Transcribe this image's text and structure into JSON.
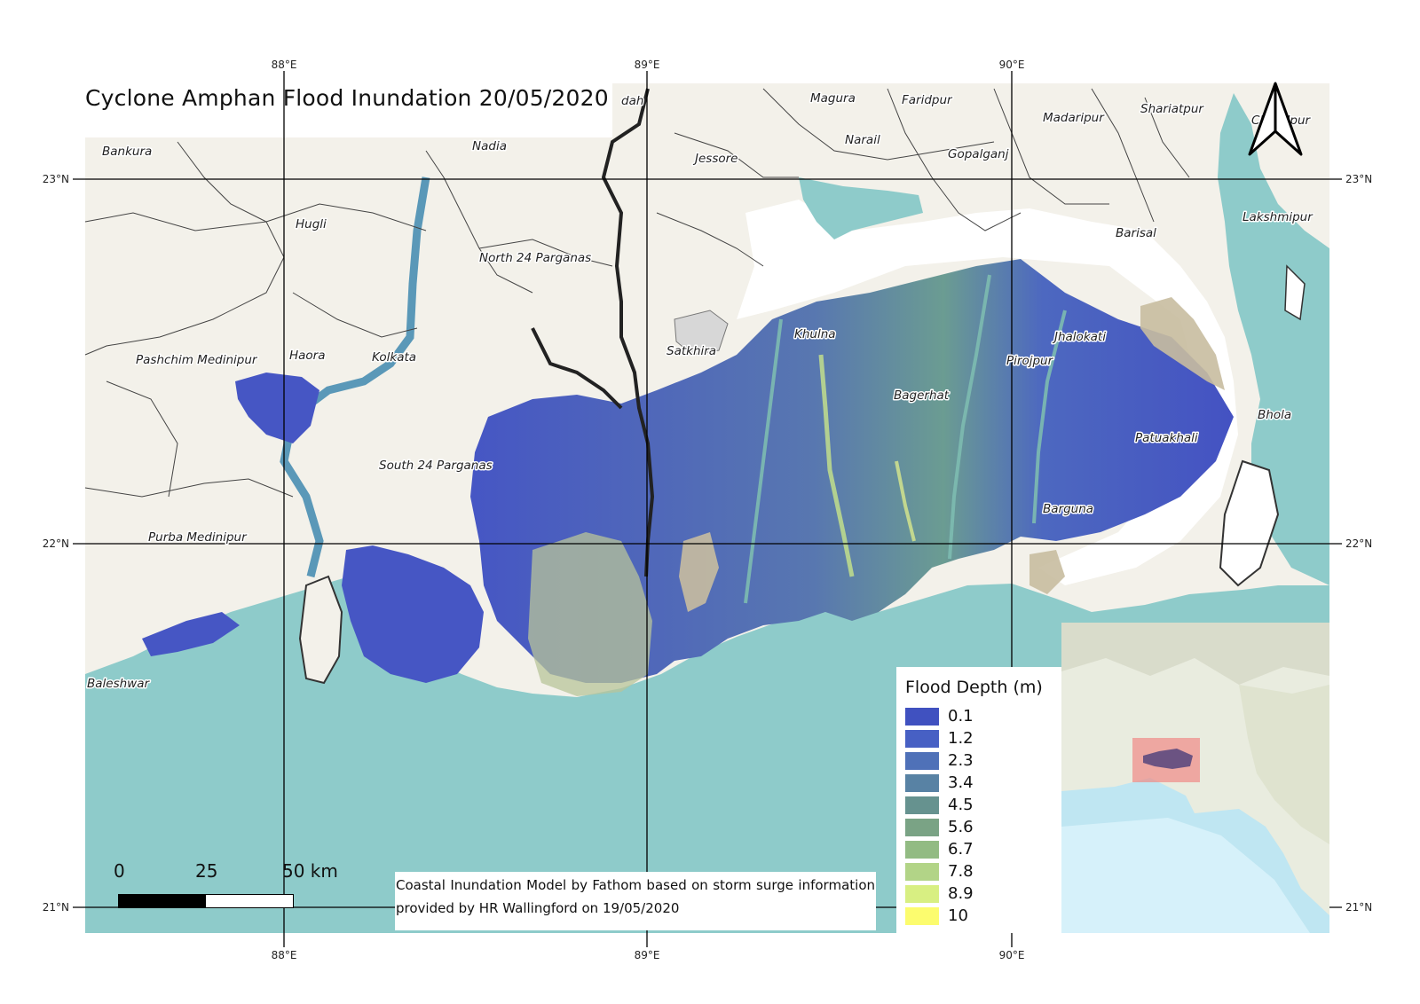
{
  "title": "Cyclone Amphan Flood Inundation 20/05/2020",
  "graticule": {
    "longitudes": [
      "88°E",
      "89°E",
      "90°E"
    ],
    "latitudes": [
      "23°N",
      "22°N",
      "21°N"
    ]
  },
  "places": [
    {
      "name": "Bankura"
    },
    {
      "name": "Nadia"
    },
    {
      "name": "Hugli"
    },
    {
      "name": "North 24 Parganas"
    },
    {
      "name": "Pashchim Medinipur"
    },
    {
      "name": "Haora"
    },
    {
      "name": "Kolkata"
    },
    {
      "name": "South 24 Parganas"
    },
    {
      "name": "Purba Medinipur"
    },
    {
      "name": "Baleshwar"
    },
    {
      "name": "dah"
    },
    {
      "name": "Magura"
    },
    {
      "name": "Faridpur"
    },
    {
      "name": "Madaripur"
    },
    {
      "name": "Shariatpur"
    },
    {
      "name": "Chandpur"
    },
    {
      "name": "Narail"
    },
    {
      "name": "Jessore"
    },
    {
      "name": "Gopalganj"
    },
    {
      "name": "Lakshmipur"
    },
    {
      "name": "Barisal"
    },
    {
      "name": "Satkhira"
    },
    {
      "name": "Khulna"
    },
    {
      "name": "Jhalokati"
    },
    {
      "name": "Pirojpur"
    },
    {
      "name": "Bagerhat"
    },
    {
      "name": "Bhola"
    },
    {
      "name": "Patuakhali"
    },
    {
      "name": "Barguna"
    }
  ],
  "legend": {
    "title": "Flood Depth (m)",
    "items": [
      {
        "label": "0.1",
        "color": "#4051c0"
      },
      {
        "label": "1.2",
        "color": "#4760c4"
      },
      {
        "label": "2.3",
        "color": "#4f71b8"
      },
      {
        "label": "3.4",
        "color": "#5882a4"
      },
      {
        "label": "4.5",
        "color": "#66928f"
      },
      {
        "label": "5.6",
        "color": "#7aa385"
      },
      {
        "label": "6.7",
        "color": "#92bb83"
      },
      {
        "label": "7.8",
        "color": "#b2d487"
      },
      {
        "label": "8.9",
        "color": "#d8ef82"
      },
      {
        "label": "10",
        "color": "#fcfc6e"
      }
    ]
  },
  "credit": "Coastal Inundation Model by Fathom based on storm surge information provided by  HR Wallingford on 19/05/2020",
  "scale_bar": {
    "labels": [
      "0",
      "25",
      "50 km"
    ]
  },
  "colors": {
    "sea": "#8ecbca",
    "land": "#f3f1ea",
    "flood": "#4a5fc0",
    "admin_border": "#222222"
  },
  "icons": {
    "north_arrow": "north-arrow-icon"
  }
}
